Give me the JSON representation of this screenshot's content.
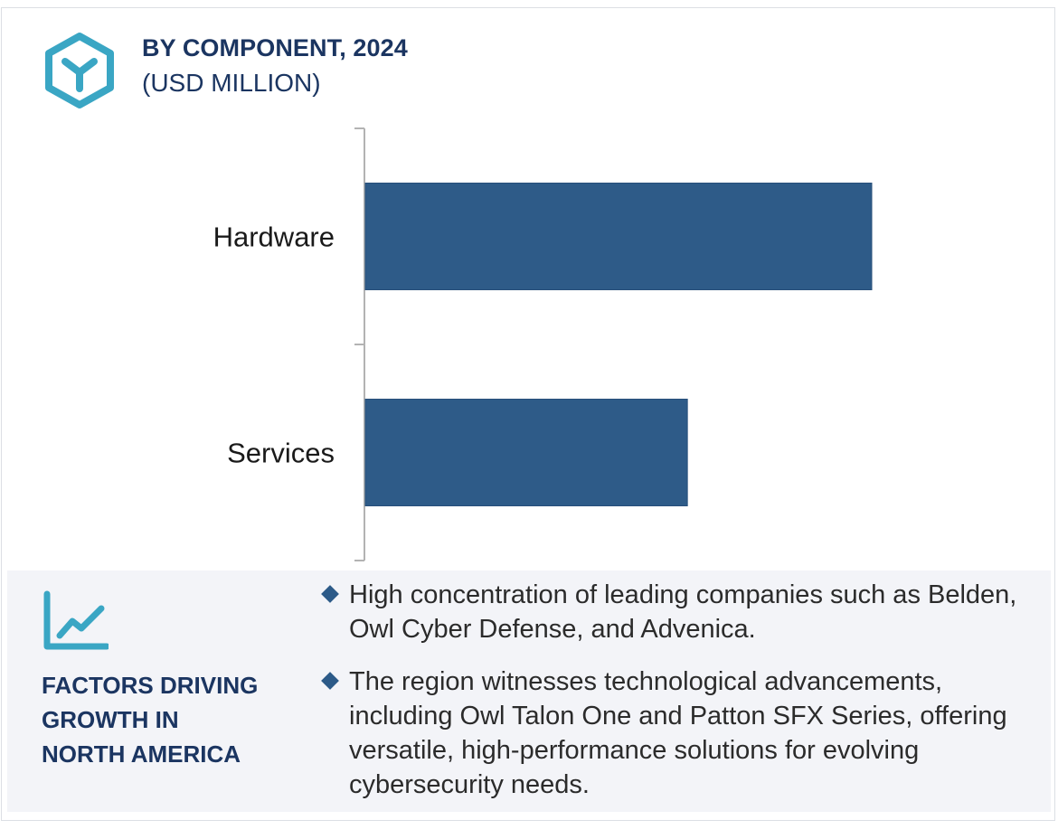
{
  "header": {
    "title": "BY COMPONENT, 2024",
    "subtitle": "(USD MILLION)",
    "icon": "cube-icon"
  },
  "chart_data": {
    "type": "bar",
    "orientation": "horizontal",
    "categories": [
      "Hardware",
      "Services"
    ],
    "values": [
      100,
      63.6
    ],
    "value_note": "relative bar lengths (Hardware = 100); no axis values printed",
    "title": "BY COMPONENT, 2024",
    "xlabel": "",
    "ylabel": "",
    "xlim": [
      0,
      100
    ],
    "grid": false,
    "legend": "none",
    "bar_color": "#2e5b88",
    "axis_color": "#b3b3b3"
  },
  "factors": {
    "icon": "trend-chart-icon",
    "title_lines": [
      "FACTORS DRIVING",
      "GROWTH IN",
      "NORTH AMERICA"
    ],
    "bullets": [
      "High concentration of leading companies such as Belden, Owl Cyber Defense, and Advenica.",
      "The region witnesses technological advancements, including Owl Talon One and Patton SFX Series, offering versatile, high-performance solutions for evolving cybersecurity needs."
    ]
  },
  "colors": {
    "accent": "#3aa6c4",
    "heading": "#1b3561",
    "bullet": "#2c5a88",
    "panel_bg": "#f3f4f8"
  }
}
